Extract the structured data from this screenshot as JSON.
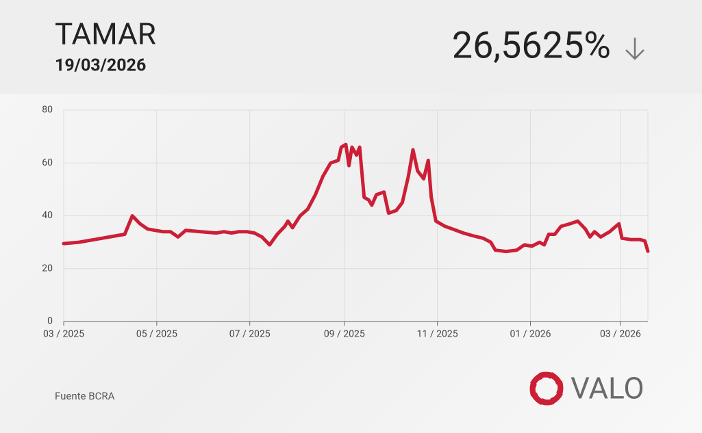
{
  "title": "TAMAR",
  "date": "19/03/2026",
  "current_value": "26,5625%",
  "source": "Fuente BCRA",
  "brand": "VALO",
  "chart_data": {
    "type": "line",
    "color": "#cc1f36",
    "grid": true,
    "x": [
      0,
      10,
      20,
      30,
      40,
      45,
      50,
      55,
      65,
      70,
      75,
      80,
      90,
      100,
      105,
      110,
      115,
      120,
      125,
      130,
      135,
      140,
      145,
      147,
      150,
      155,
      160,
      165,
      170,
      175,
      180,
      182,
      185,
      187,
      189,
      192,
      194,
      197,
      200,
      202,
      205,
      210,
      213,
      218,
      222,
      226,
      229,
      232,
      236,
      239,
      241,
      244,
      250,
      255,
      262,
      268,
      275,
      280,
      283,
      290,
      297,
      302,
      307,
      312,
      315,
      318,
      322,
      326,
      332,
      337,
      342,
      345,
      348,
      352,
      358,
      362,
      364,
      366,
      372,
      378,
      381,
      383
    ],
    "values": [
      29.5,
      30,
      31,
      32,
      33,
      40,
      37,
      35,
      34,
      34,
      32,
      34.5,
      34,
      33.5,
      34,
      33.5,
      34,
      34,
      33.5,
      32,
      29,
      33,
      36,
      38,
      35.5,
      40,
      42.5,
      48,
      55,
      60,
      61,
      66,
      67,
      59,
      66,
      63,
      66,
      47,
      46,
      44,
      48,
      49,
      41,
      42,
      45,
      55,
      65,
      57,
      54,
      61,
      47,
      38,
      36,
      35,
      33.5,
      32.5,
      31.5,
      30,
      27,
      26.5,
      27,
      29,
      28.5,
      30,
      29,
      33,
      33,
      36,
      37,
      38,
      35,
      32,
      34,
      32,
      34,
      36,
      37,
      31.5,
      31,
      31,
      30.5,
      26.6
    ],
    "xlim": [
      0,
      383
    ],
    "xticks": [
      {
        "value": 0,
        "label": "03 / 2025"
      },
      {
        "value": 61,
        "label": "05 / 2025"
      },
      {
        "value": 122,
        "label": "07 / 2025"
      },
      {
        "value": 184,
        "label": "09 / 2025"
      },
      {
        "value": 245,
        "label": "11 / 2025"
      },
      {
        "value": 306,
        "label": "01 / 2026"
      },
      {
        "value": 365,
        "label": "03 / 2026"
      }
    ],
    "ylim": [
      0,
      80
    ],
    "yticks": [
      0,
      20,
      40,
      60,
      80
    ]
  }
}
